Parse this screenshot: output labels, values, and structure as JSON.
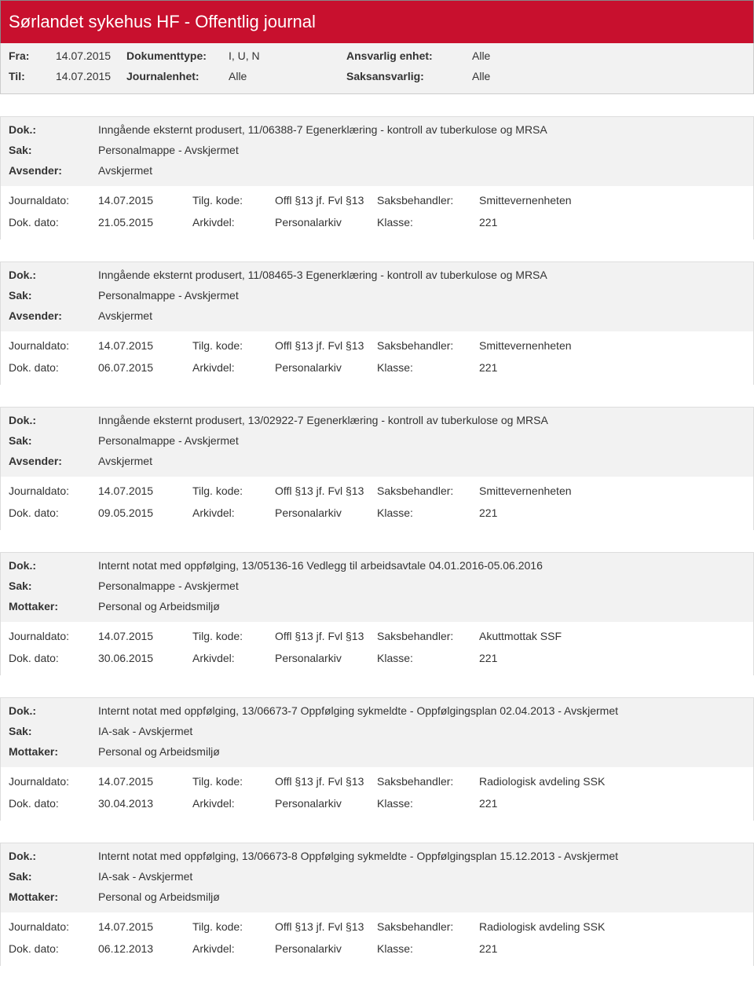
{
  "header": {
    "title": "Sørlandet sykehus HF - Offentlig journal",
    "fra_label": "Fra:",
    "fra_value": "14.07.2015",
    "til_label": "Til:",
    "til_value": "14.07.2015",
    "dokumenttype_label": "Dokumenttype:",
    "dokumenttype_value": "I, U, N",
    "journalenhet_label": "Journalenhet:",
    "journalenhet_value": "Alle",
    "ansvarlig_enhet_label": "Ansvarlig enhet:",
    "ansvarlig_enhet_value": "Alle",
    "saksansvarlig_label": "Saksansvarlig:",
    "saksansvarlig_value": "Alle"
  },
  "labels": {
    "dok": "Dok.:",
    "sak": "Sak:",
    "avsender": "Avsender:",
    "mottaker": "Mottaker:",
    "journaldato": "Journaldato:",
    "dokdato": "Dok. dato:",
    "tilgkode": "Tilg. kode:",
    "arkivdel": "Arkivdel:",
    "saksbehandler": "Saksbehandler:",
    "klasse": "Klasse:"
  },
  "entries": [
    {
      "dok": "Inngående eksternt produsert, 11/06388-7 Egenerklæring - kontroll av tuberkulose og MRSA",
      "sak": "Personalmappe - Avskjermet",
      "party_label_key": "avsender",
      "party": "Avskjermet",
      "journaldato": "14.07.2015",
      "dokdato": "21.05.2015",
      "tilgkode": "Offl §13 jf. Fvl §13",
      "arkivdel": "Personalarkiv",
      "saksbehandler": "Smittevernenheten",
      "klasse": "221"
    },
    {
      "dok": "Inngående eksternt produsert, 11/08465-3 Egenerklæring - kontroll av tuberkulose og MRSA",
      "sak": "Personalmappe - Avskjermet",
      "party_label_key": "avsender",
      "party": "Avskjermet",
      "journaldato": "14.07.2015",
      "dokdato": "06.07.2015",
      "tilgkode": "Offl §13 jf. Fvl §13",
      "arkivdel": "Personalarkiv",
      "saksbehandler": "Smittevernenheten",
      "klasse": "221"
    },
    {
      "dok": "Inngående eksternt produsert, 13/02922-7 Egenerklæring - kontroll av tuberkulose og MRSA",
      "sak": "Personalmappe - Avskjermet",
      "party_label_key": "avsender",
      "party": "Avskjermet",
      "journaldato": "14.07.2015",
      "dokdato": "09.05.2015",
      "tilgkode": "Offl §13 jf. Fvl §13",
      "arkivdel": "Personalarkiv",
      "saksbehandler": "Smittevernenheten",
      "klasse": "221"
    },
    {
      "dok": "Internt notat med oppfølging, 13/05136-16 Vedlegg til arbeidsavtale 04.01.2016-05.06.2016",
      "sak": "Personalmappe - Avskjermet",
      "party_label_key": "mottaker",
      "party": "Personal og Arbeidsmiljø",
      "journaldato": "14.07.2015",
      "dokdato": "30.06.2015",
      "tilgkode": "Offl §13 jf. Fvl §13",
      "arkivdel": "Personalarkiv",
      "saksbehandler": "Akuttmottak SSF",
      "klasse": "221"
    },
    {
      "dok": "Internt notat med oppfølging, 13/06673-7 Oppfølging sykmeldte - Oppfølgingsplan 02.04.2013 - Avskjermet",
      "sak": "IA-sak - Avskjermet",
      "party_label_key": "mottaker",
      "party": "Personal og Arbeidsmiljø",
      "journaldato": "14.07.2015",
      "dokdato": "30.04.2013",
      "tilgkode": "Offl §13 jf. Fvl §13",
      "arkivdel": "Personalarkiv",
      "saksbehandler": "Radiologisk avdeling SSK",
      "klasse": "221"
    },
    {
      "dok": "Internt notat med oppfølging, 13/06673-8 Oppfølging sykmeldte - Oppfølgingsplan 15.12.2013 - Avskjermet",
      "sak": "IA-sak - Avskjermet",
      "party_label_key": "mottaker",
      "party": "Personal og Arbeidsmiljø",
      "journaldato": "14.07.2015",
      "dokdato": "06.12.2013",
      "tilgkode": "Offl §13 jf. Fvl §13",
      "arkivdel": "Personalarkiv",
      "saksbehandler": "Radiologisk avdeling SSK",
      "klasse": "221"
    }
  ]
}
